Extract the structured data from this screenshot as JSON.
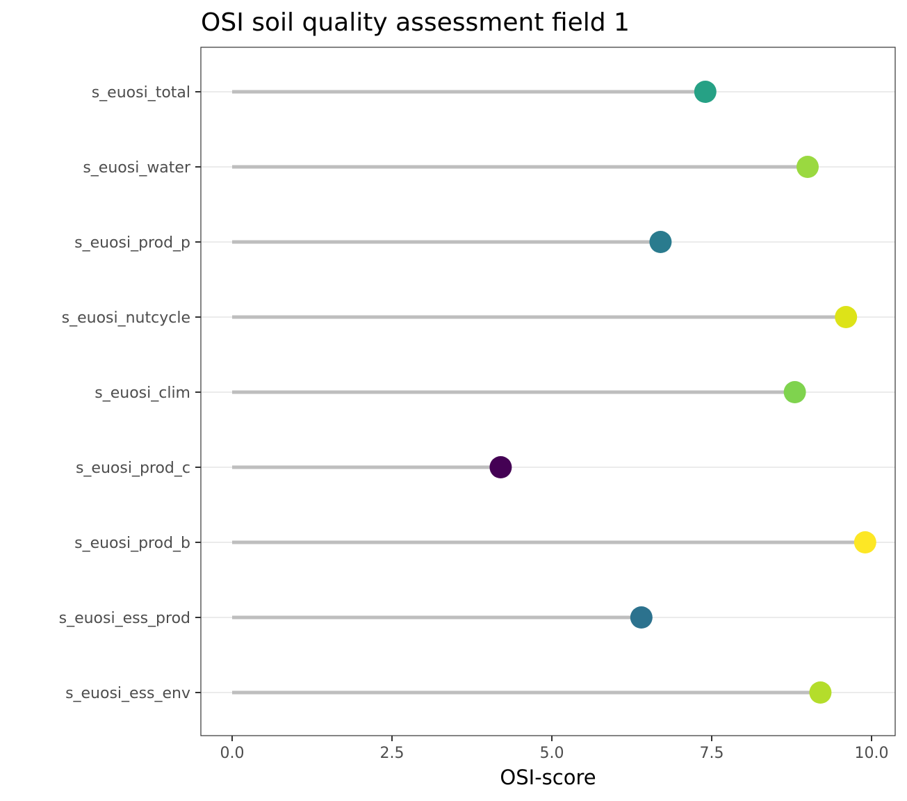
{
  "chart_data": {
    "type": "lollipop",
    "title": "OSI soil quality assessment field 1",
    "xlabel": "OSI-score",
    "ylabel": "",
    "xlim": [
      -0.25,
      10.2
    ],
    "xticks": [
      0,
      2.5,
      5,
      7.5,
      10
    ],
    "xtick_labels": [
      "0.0",
      "2.5",
      "5.0",
      "7.5",
      "10.0"
    ],
    "grid": "horizontal-major",
    "legend": "none",
    "categories": [
      "s_euosi_total",
      "s_euosi_water",
      "s_euosi_prod_p",
      "s_euosi_nutcycle",
      "s_euosi_clim",
      "s_euosi_prod_c",
      "s_euosi_prod_b",
      "s_euosi_ess_prod",
      "s_euosi_ess_env"
    ],
    "values": [
      7.4,
      9.0,
      6.7,
      9.6,
      8.8,
      4.2,
      9.9,
      6.4,
      9.2
    ],
    "point_colors": [
      "#26a185",
      "#9ad940",
      "#2a7b8e",
      "#dde318",
      "#7fd34e",
      "#440154",
      "#fde725",
      "#2c728e",
      "#b4dd2b"
    ],
    "stem_color": "#bebebe",
    "grid_color": "#ebebeb",
    "panel_border_color": "#333333"
  }
}
